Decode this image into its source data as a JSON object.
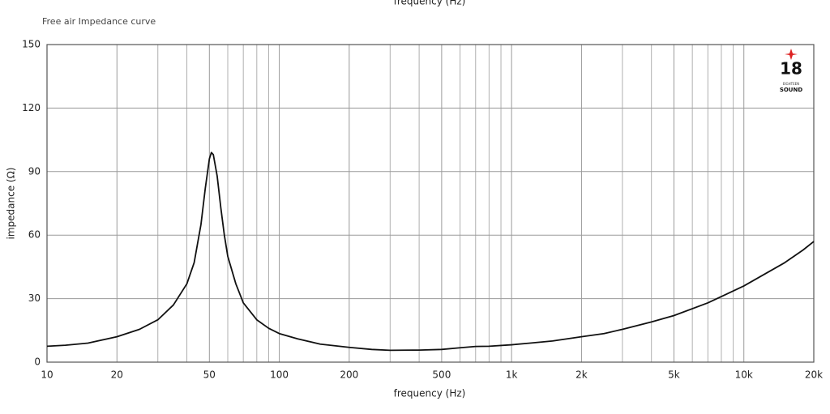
{
  "chart_data": {
    "type": "line",
    "top_caption": "frequency (Hz)",
    "title": "Free air Impedance curve",
    "logo": {
      "number": "18",
      "small": "EIGHTEEN",
      "name": "SOUND"
    },
    "x_label": "frequency (Hz)",
    "y_label": "impedance (Ω)",
    "x_log": true,
    "grid": true,
    "color": "#111111",
    "xlim": [
      10,
      20000
    ],
    "ylim": [
      0,
      150
    ],
    "xticks": [
      10,
      20,
      50,
      100,
      200,
      500,
      {
        "value": 1000,
        "label": "1k"
      },
      {
        "value": 2000,
        "label": "2k"
      },
      {
        "value": 5000,
        "label": "5k"
      },
      {
        "value": 10000,
        "label": "10k"
      },
      {
        "value": 20000,
        "label": "20k"
      }
    ],
    "xgrid_minor": [
      30,
      40,
      60,
      70,
      80,
      90,
      300,
      400,
      600,
      700,
      800,
      900,
      3000,
      4000,
      6000,
      7000,
      8000,
      9000
    ],
    "yticks": [
      0,
      30,
      60,
      90,
      120,
      150
    ],
    "x": [
      10,
      12,
      15,
      20,
      25,
      30,
      35,
      40,
      43,
      46,
      48,
      50,
      51,
      52,
      54,
      56,
      58,
      60,
      65,
      70,
      80,
      90,
      100,
      120,
      150,
      200,
      250,
      300,
      400,
      500,
      600,
      700,
      800,
      1000,
      1200,
      1500,
      2000,
      2500,
      3000,
      4000,
      5000,
      7000,
      10000,
      15000,
      18000,
      20000
    ],
    "values": [
      7.5,
      8,
      9,
      12,
      15.5,
      20,
      27,
      37,
      47,
      65,
      82,
      96,
      99,
      98,
      88,
      73,
      60,
      50,
      37,
      28,
      20,
      16,
      13.5,
      11,
      8.5,
      7,
      6,
      5.6,
      5.7,
      6,
      6.8,
      7.4,
      7.5,
      8.2,
      9,
      10,
      12,
      13.5,
      15.5,
      19,
      22,
      28,
      36,
      47,
      53,
      57
    ]
  }
}
